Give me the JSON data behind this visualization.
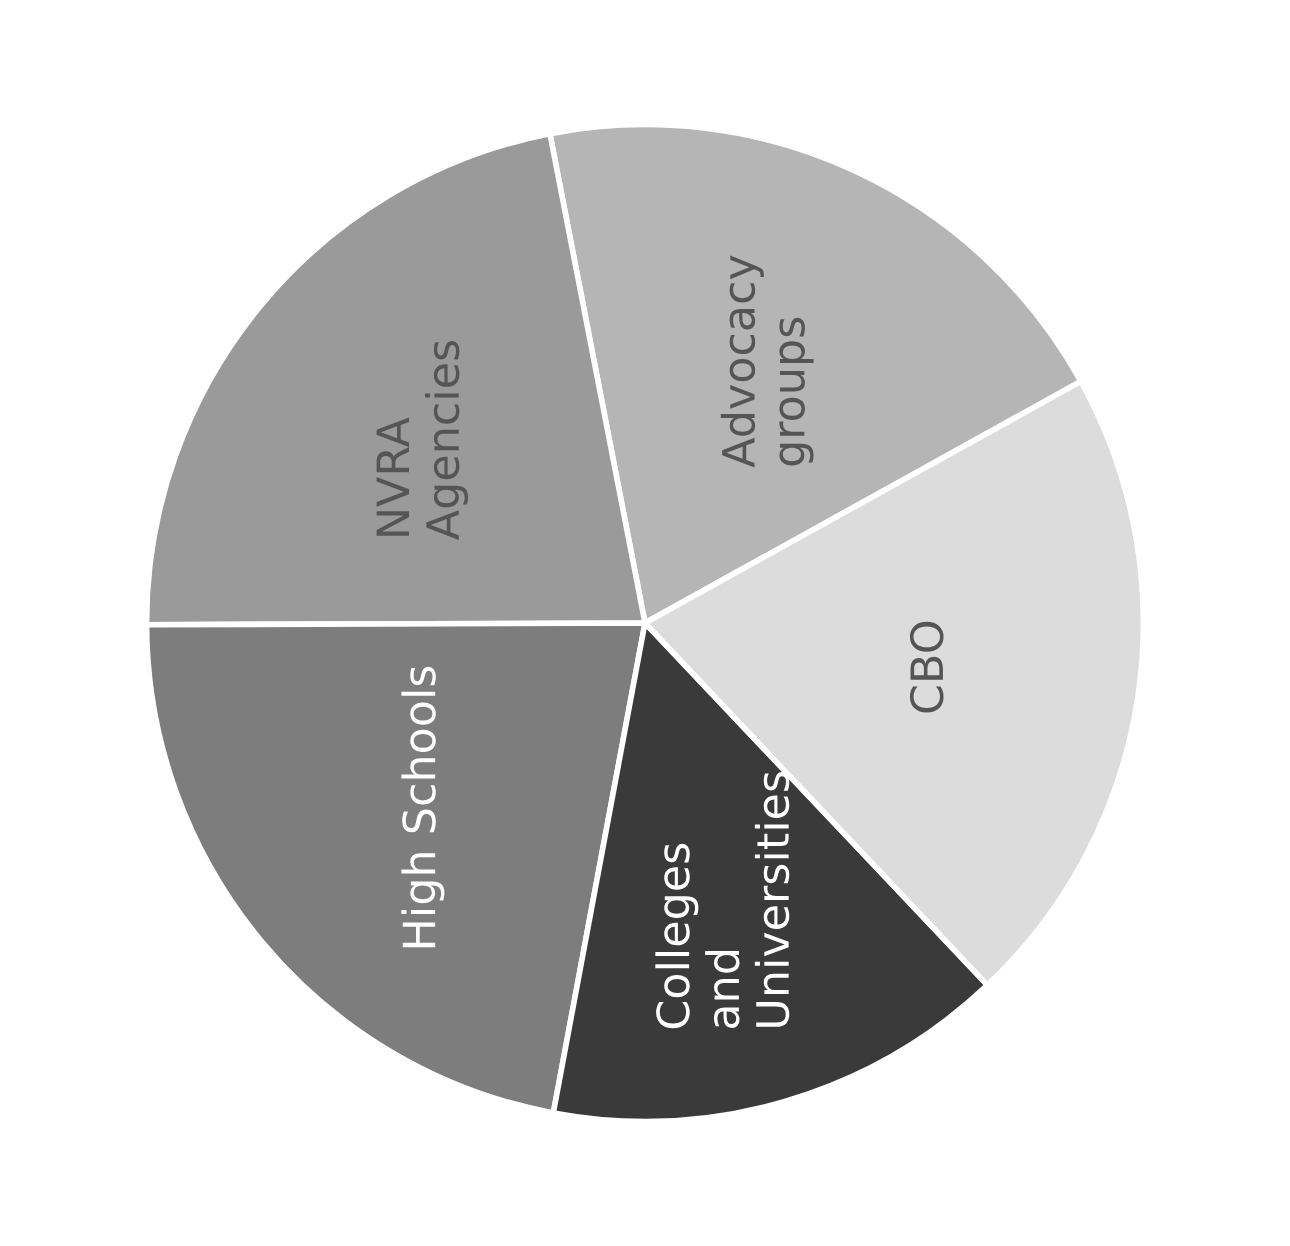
{
  "chart_data": {
    "type": "pie",
    "categories": [
      "Advocacy\ngroups",
      "NVRA\nAgencies",
      "High Schools",
      "Colleges\nand\nUniversities",
      "CBO"
    ],
    "values": [
      20,
      22,
      22,
      15,
      21
    ],
    "colors": [
      "#b5b5b5",
      "#9a9a9a",
      "#7d7d7d",
      "#3a3a3a",
      "#dcdcdc"
    ]
  }
}
